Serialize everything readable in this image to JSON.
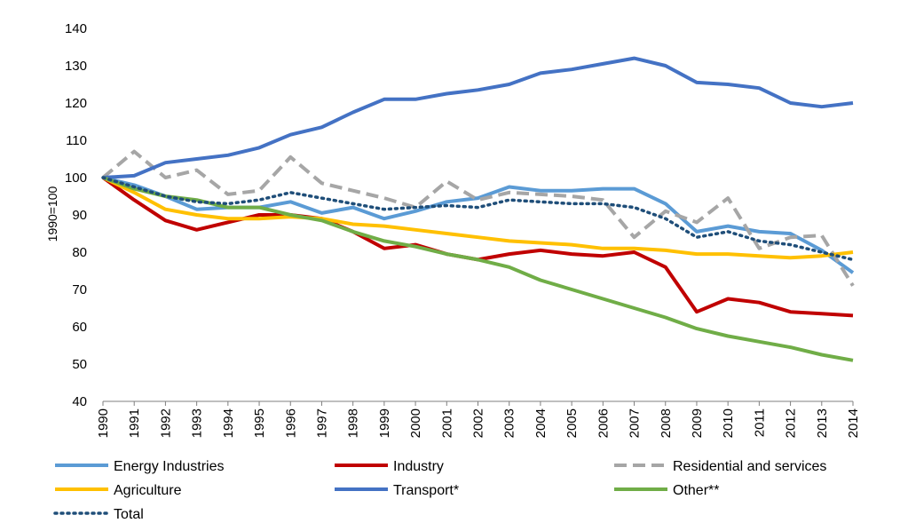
{
  "chart_data": {
    "type": "line",
    "title": "",
    "xlabel": "",
    "ylabel": "1990=100",
    "ylim": [
      40,
      140
    ],
    "yticks": [
      40,
      50,
      60,
      70,
      80,
      90,
      100,
      110,
      120,
      130,
      140
    ],
    "grid": false,
    "legend_position": "bottom",
    "x": [
      "1990",
      "1991",
      "1992",
      "1993",
      "1994",
      "1995",
      "1996",
      "1997",
      "1998",
      "1999",
      "2000",
      "2001",
      "2002",
      "2003",
      "2004",
      "2005",
      "2006",
      "2007",
      "2008",
      "2009",
      "2010",
      "2011",
      "2012",
      "2013",
      "2014"
    ],
    "series": [
      {
        "name": "Energy Industries",
        "color": "#5B9BD5",
        "style": "solid",
        "values": [
          100,
          98,
          95,
          91.5,
          92,
          92,
          93.5,
          90.5,
          92,
          89,
          91,
          93.5,
          94.5,
          97.5,
          96.5,
          96.5,
          97,
          97,
          93,
          85.5,
          87,
          85.5,
          85,
          80.5,
          74.5
        ]
      },
      {
        "name": "Industry",
        "color": "#C00000",
        "style": "solid",
        "values": [
          100,
          94,
          88.5,
          86,
          88,
          90,
          90,
          89,
          85.5,
          81,
          82,
          79.5,
          78,
          79.5,
          80.5,
          79.5,
          79,
          80,
          76,
          64,
          67.5,
          66.5,
          64,
          63.5,
          63
        ]
      },
      {
        "name": "Residential and services",
        "color": "#A6A6A6",
        "style": "dashed",
        "values": [
          100,
          107,
          100,
          102,
          95.5,
          96.5,
          105.5,
          98.5,
          96.5,
          94.5,
          92,
          99,
          94,
          96,
          95.5,
          95,
          94,
          84,
          91,
          88,
          94.5,
          81,
          84,
          84.5,
          71
        ]
      },
      {
        "name": "Agriculture",
        "color": "#FFC000",
        "style": "solid",
        "values": [
          100,
          96,
          91.5,
          90,
          89,
          89,
          89.5,
          89,
          87.5,
          87,
          86,
          85,
          84,
          83,
          82.5,
          82,
          81,
          81,
          80.5,
          79.5,
          79.5,
          79,
          78.5,
          79,
          80
        ]
      },
      {
        "name": "Transport*",
        "color": "#4472C4",
        "style": "solid",
        "values": [
          100,
          100.5,
          104,
          105,
          106,
          108,
          111.5,
          113.5,
          117.5,
          121,
          121,
          122.5,
          123.5,
          125,
          128,
          129,
          130.5,
          132,
          130,
          125.5,
          125,
          124,
          120,
          119,
          120
        ]
      },
      {
        "name": "Other**",
        "color": "#70AD47",
        "style": "solid",
        "values": [
          100,
          97,
          95,
          94,
          92,
          92,
          90,
          88.5,
          85.5,
          83,
          81.5,
          79.5,
          78,
          76,
          72.5,
          70,
          67.5,
          65,
          62.5,
          59.5,
          57.5,
          56,
          54.5,
          52.5,
          51
        ]
      },
      {
        "name": "Total",
        "color": "#1F4E79",
        "style": "dotted",
        "values": [
          100,
          97.5,
          95,
          93.5,
          93,
          94,
          96,
          94.5,
          93,
          91.5,
          92,
          92.5,
          92,
          94,
          93.5,
          93,
          93,
          92,
          89,
          84,
          85.5,
          83,
          82,
          80,
          78
        ]
      }
    ]
  }
}
